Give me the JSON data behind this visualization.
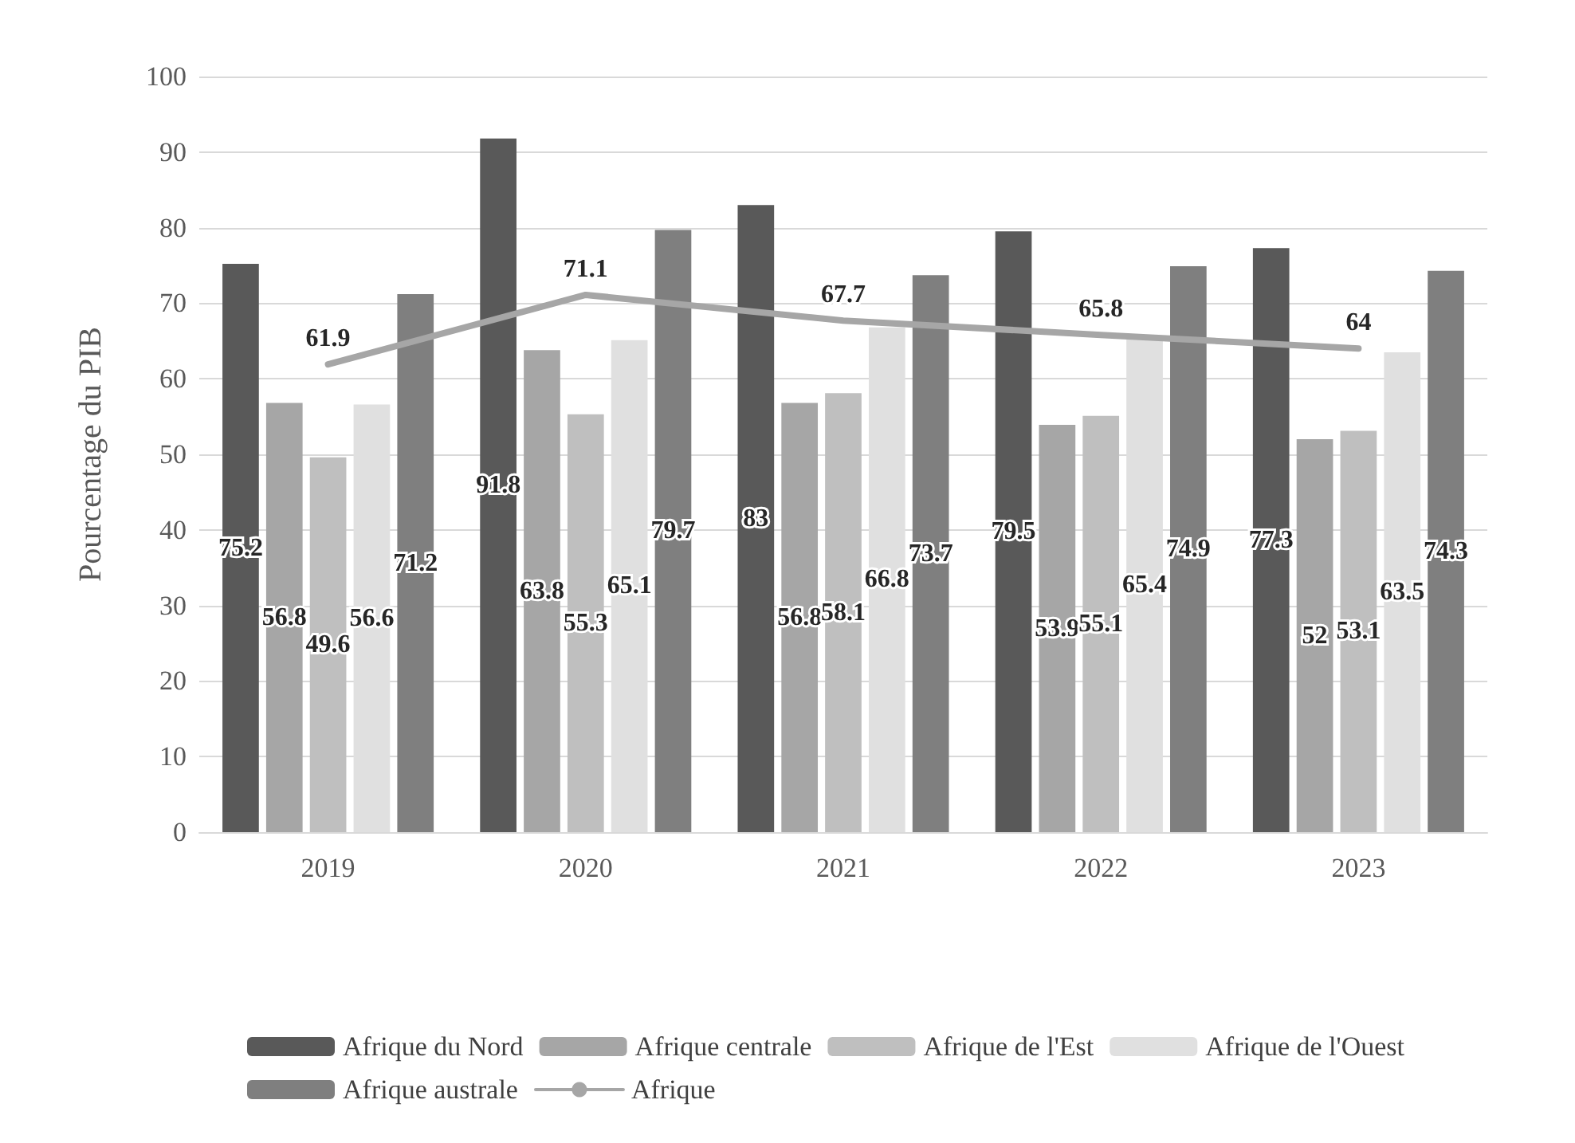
{
  "chart_data": {
    "type": "bar",
    "ylabel": "Pourcentage du PIB",
    "categories": [
      "2019",
      "2020",
      "2021",
      "2022",
      "2023"
    ],
    "series": [
      {
        "name": "Afrique du Nord",
        "color": "#595959",
        "values": [
          75.2,
          91.8,
          83,
          79.5,
          77.3
        ]
      },
      {
        "name": "Afrique centrale",
        "color": "#a6a6a6",
        "values": [
          56.8,
          63.8,
          56.8,
          53.9,
          52
        ]
      },
      {
        "name": "Afrique de l'Est",
        "color": "#bfbfbf",
        "values": [
          49.6,
          55.3,
          58.1,
          55.1,
          53.1
        ]
      },
      {
        "name": "Afrique de l'Ouest",
        "color": "#e0e0e0",
        "values": [
          56.6,
          65.1,
          66.8,
          65.4,
          63.5
        ]
      },
      {
        "name": "Afrique australe",
        "color": "#7f7f7f",
        "values": [
          71.2,
          79.7,
          73.7,
          74.9,
          74.3
        ]
      },
      {
        "name": "Afrique",
        "type": "line",
        "color": "#a6a6a6",
        "values": [
          61.9,
          71.1,
          67.7,
          65.8,
          64
        ]
      }
    ],
    "ylim": [
      0,
      100
    ],
    "yticks": [
      0,
      10,
      20,
      30,
      40,
      50,
      60,
      70,
      80,
      90,
      100
    ],
    "grid": "y",
    "legend": "bottom",
    "data_labels": true,
    "marker": "none"
  }
}
